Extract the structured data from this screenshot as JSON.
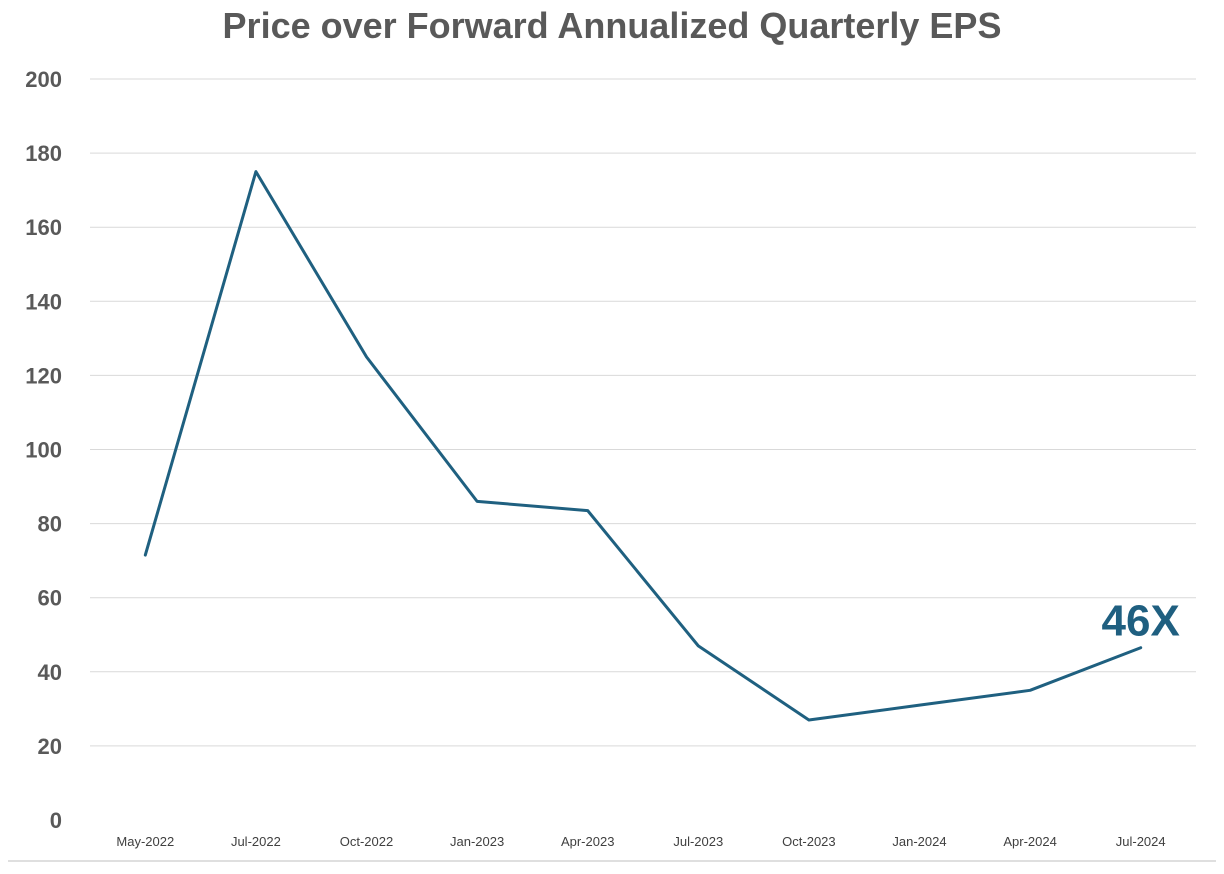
{
  "chart_data": {
    "type": "line",
    "title": "Price over Forward Annualized Quarterly EPS",
    "xlabel": "",
    "ylabel": "",
    "ylim": [
      0,
      200
    ],
    "y_ticks": [
      0,
      20,
      40,
      60,
      80,
      100,
      120,
      140,
      160,
      180,
      200
    ],
    "grid": true,
    "legend": "none",
    "x_tick_labels": [
      "May-2022",
      "Jul-2022",
      "Oct-2022",
      "Jan-2023",
      "Apr-2023",
      "Jul-2023",
      "Oct-2023",
      "Jan-2024",
      "Apr-2024",
      "Jul-2024"
    ],
    "series": [
      {
        "color": "#1f6080",
        "values": [
          71.5,
          175,
          125,
          86,
          83.5,
          47,
          27,
          31,
          35,
          46.5
        ]
      }
    ],
    "annotation": {
      "text": "46X",
      "color": "#1f5f80"
    }
  }
}
